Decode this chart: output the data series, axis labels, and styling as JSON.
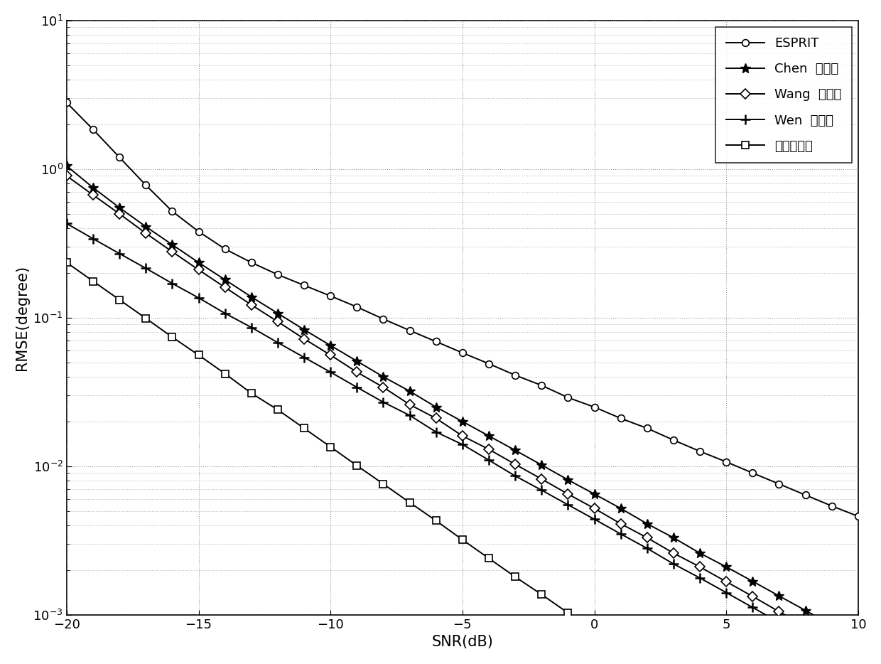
{
  "snr": [
    -20,
    -19,
    -18,
    -17,
    -16,
    -15,
    -14,
    -13,
    -12,
    -11,
    -10,
    -9,
    -8,
    -7,
    -6,
    -5,
    -4,
    -3,
    -2,
    -1,
    0,
    1,
    2,
    3,
    4,
    5,
    6,
    7,
    8,
    9,
    10
  ],
  "esprit": [
    2.8,
    1.85,
    1.2,
    0.78,
    0.52,
    0.38,
    0.29,
    0.235,
    0.195,
    0.165,
    0.14,
    0.118,
    0.098,
    0.082,
    0.069,
    0.058,
    0.049,
    0.041,
    0.035,
    0.029,
    0.025,
    0.021,
    0.018,
    0.015,
    0.0126,
    0.0107,
    0.009,
    0.0076,
    0.0064,
    0.0054,
    0.0046
  ],
  "chen": [
    1.05,
    0.75,
    0.55,
    0.41,
    0.31,
    0.235,
    0.18,
    0.138,
    0.107,
    0.083,
    0.065,
    0.051,
    0.04,
    0.032,
    0.025,
    0.02,
    0.016,
    0.0128,
    0.0102,
    0.0081,
    0.0065,
    0.0052,
    0.0041,
    0.0033,
    0.0026,
    0.0021,
    0.00168,
    0.00134,
    0.00107,
    0.00085,
    0.00068
  ],
  "wang": [
    0.9,
    0.67,
    0.5,
    0.37,
    0.278,
    0.21,
    0.16,
    0.122,
    0.094,
    0.072,
    0.056,
    0.043,
    0.034,
    0.026,
    0.021,
    0.016,
    0.013,
    0.0103,
    0.0082,
    0.0065,
    0.0052,
    0.0041,
    0.0033,
    0.0026,
    0.0021,
    0.00167,
    0.00133,
    0.00105,
    0.00084,
    0.00067,
    0.00053
  ],
  "wen": [
    0.43,
    0.34,
    0.27,
    0.215,
    0.17,
    0.136,
    0.107,
    0.086,
    0.068,
    0.054,
    0.043,
    0.034,
    0.027,
    0.022,
    0.017,
    0.014,
    0.011,
    0.0086,
    0.0069,
    0.0055,
    0.0044,
    0.0035,
    0.0028,
    0.0022,
    0.00177,
    0.00141,
    0.00112,
    0.00089,
    0.00071,
    0.00056,
    0.00045
  ],
  "proposed": [
    0.235,
    0.176,
    0.132,
    0.099,
    0.074,
    0.056,
    0.042,
    0.031,
    0.024,
    0.018,
    0.0135,
    0.0101,
    0.0076,
    0.0057,
    0.0043,
    0.0032,
    0.0024,
    0.0018,
    0.00137,
    0.00103,
    0.00077,
    0.00058,
    0.00044,
    0.00033,
    0.000247,
    0.000185,
    0.000139,
    0.000104,
    7.8e-05,
    5.85e-05,
    4.39e-05
  ],
  "xlabel": "SNR(dB)",
  "ylabel": "RMSE(degree)",
  "xlim": [
    -20,
    10
  ],
  "ylim_bottom": 0.001,
  "ylim_top": 10,
  "legend_esprit": "ESPRIT",
  "legend_chen": "Chen  的方法",
  "legend_wang": "Wang  的方法",
  "legend_wen": "Wen  的方法",
  "legend_proposed": "本发明算法",
  "line_color": "#000000",
  "bg_color": "#ffffff",
  "marker_size": 7,
  "linewidth": 1.4,
  "grid_color": "#999999",
  "fontsize_axis": 15,
  "fontsize_tick": 13,
  "fontsize_legend": 13
}
